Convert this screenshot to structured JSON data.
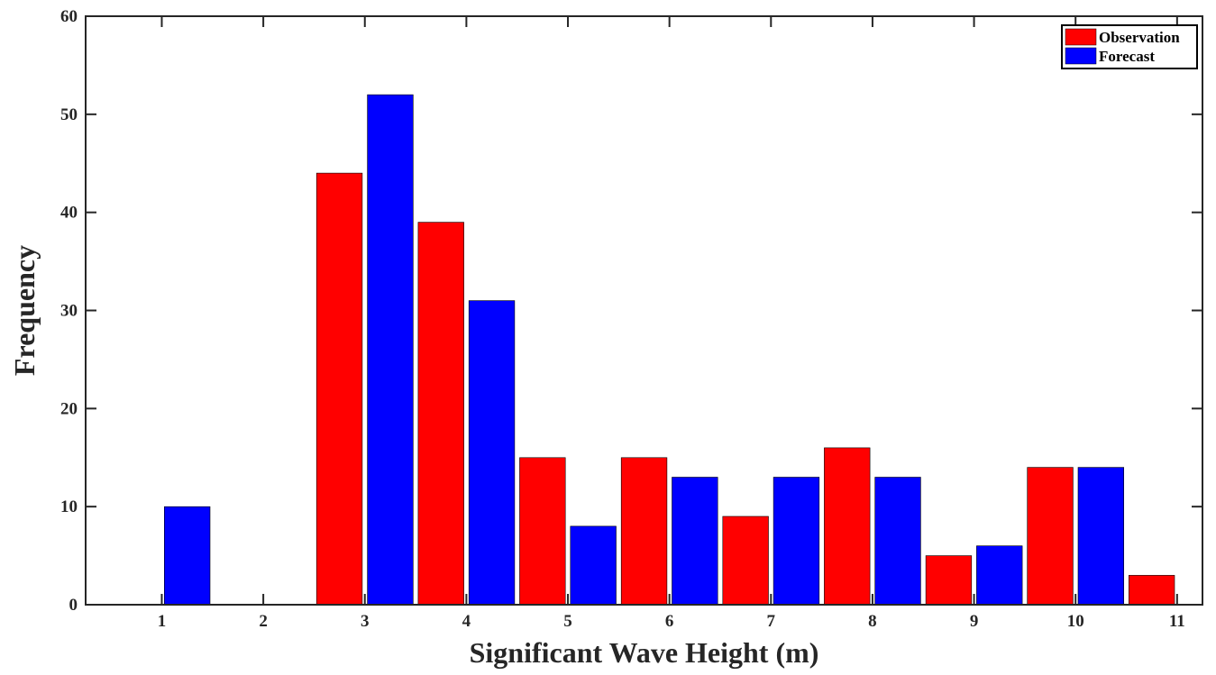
{
  "chart_data": {
    "type": "bar",
    "title": "",
    "xlabel": "Significant Wave Height (m)",
    "ylabel": "Frequency",
    "xlim": [
      0.25,
      11.25
    ],
    "ylim": [
      0,
      60
    ],
    "xticks": [
      1,
      2,
      3,
      4,
      5,
      6,
      7,
      8,
      9,
      10,
      11
    ],
    "yticks": [
      0,
      10,
      20,
      30,
      40,
      50,
      60
    ],
    "grid": false,
    "legend_placement": "top-right",
    "bars": [
      {
        "x": 1.25,
        "value": 10,
        "series": "Forecast"
      },
      {
        "x": 2.75,
        "value": 44,
        "series": "Observation"
      },
      {
        "x": 3.25,
        "value": 52,
        "series": "Forecast"
      },
      {
        "x": 3.75,
        "value": 39,
        "series": "Observation"
      },
      {
        "x": 4.25,
        "value": 31,
        "series": "Forecast"
      },
      {
        "x": 4.75,
        "value": 15,
        "series": "Observation"
      },
      {
        "x": 5.25,
        "value": 8,
        "series": "Forecast"
      },
      {
        "x": 5.75,
        "value": 15,
        "series": "Observation"
      },
      {
        "x": 6.25,
        "value": 13,
        "series": "Forecast"
      },
      {
        "x": 6.75,
        "value": 9,
        "series": "Observation"
      },
      {
        "x": 7.25,
        "value": 13,
        "series": "Forecast"
      },
      {
        "x": 7.75,
        "value": 16,
        "series": "Observation"
      },
      {
        "x": 8.25,
        "value": 13,
        "series": "Forecast"
      },
      {
        "x": 8.75,
        "value": 5,
        "series": "Observation"
      },
      {
        "x": 9.25,
        "value": 6,
        "series": "Forecast"
      },
      {
        "x": 9.75,
        "value": 14,
        "series": "Observation"
      },
      {
        "x": 10.25,
        "value": 14,
        "series": "Forecast"
      },
      {
        "x": 10.75,
        "value": 3,
        "series": "Observation"
      }
    ],
    "series": [
      {
        "name": "Observation",
        "color": "#ff0000"
      },
      {
        "name": "Forecast",
        "color": "#0000ff"
      }
    ]
  }
}
